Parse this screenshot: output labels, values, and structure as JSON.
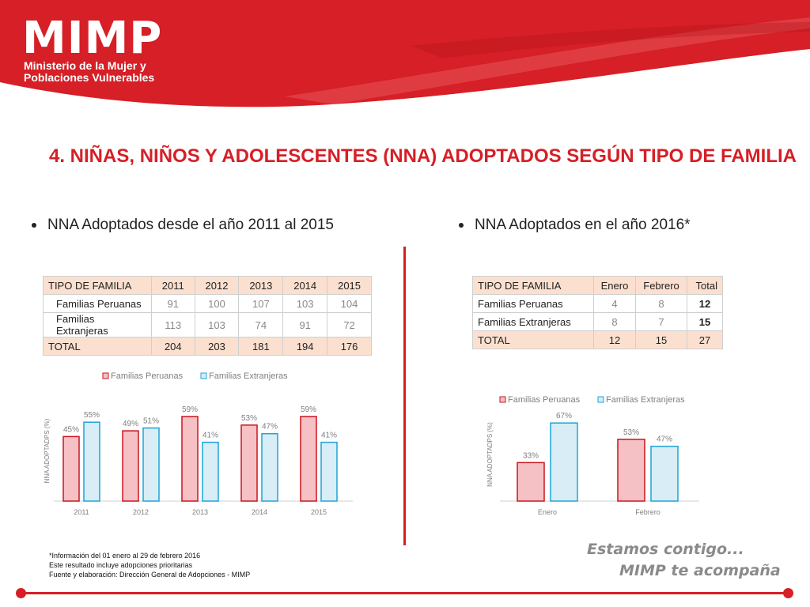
{
  "brand": {
    "name": "MIMP",
    "line1": "Ministerio de la Mujer y",
    "line2": "Poblaciones Vulnerables",
    "red": "#d61f26"
  },
  "title": "4. NIÑAS, NIÑOS Y ADOLESCENTES (NNA) ADOPTADOS SEGÚN TIPO DE FAMILIA",
  "left": {
    "bullet": "NNA Adoptados desde el año 2011 al 2015",
    "table": {
      "headers": [
        "TIPO DE FAMILIA",
        "2011",
        "2012",
        "2013",
        "2014",
        "2015"
      ],
      "rows": [
        [
          "Familias Peruanas",
          "91",
          "100",
          "107",
          "103",
          "104"
        ],
        [
          "Familias Extranjeras",
          "113",
          "103",
          "74",
          "91",
          "72"
        ],
        [
          "TOTAL",
          "204",
          "203",
          "181",
          "194",
          "176"
        ]
      ]
    }
  },
  "right": {
    "bullet": "NNA Adoptados en el año 2016*",
    "table": {
      "headers": [
        "TIPO DE FAMILIA",
        "Enero",
        "Febrero",
        "Total"
      ],
      "rows": [
        [
          "Familias Peruanas",
          "4",
          "8",
          "12"
        ],
        [
          "Familias Extranjeras",
          "8",
          "7",
          "15"
        ],
        [
          "TOTAL",
          "12",
          "15",
          "27"
        ]
      ]
    }
  },
  "chart_data": [
    {
      "type": "bar",
      "categories": [
        "2011",
        "2012",
        "2013",
        "2014",
        "2015"
      ],
      "series": [
        {
          "name": "Familias Peruanas",
          "values": [
            45,
            49,
            59,
            53,
            59
          ],
          "labels": [
            "45%",
            "49%",
            "59%",
            "53%",
            "59%"
          ]
        },
        {
          "name": "Familias Extranjeras",
          "values": [
            55,
            51,
            41,
            47,
            41
          ],
          "labels": [
            "55%",
            "51%",
            "41%",
            "47%",
            "41%"
          ]
        }
      ],
      "ylabel": "NNA ADOPTADPS (%)",
      "ylim": [
        0,
        70
      ],
      "legend": "top"
    },
    {
      "type": "bar",
      "categories": [
        "Enero",
        "Febrero"
      ],
      "series": [
        {
          "name": "Familias Peruanas",
          "values": [
            33,
            53
          ],
          "labels": [
            "33%",
            "53%"
          ]
        },
        {
          "name": "Familias Extranjeras",
          "values": [
            67,
            47
          ],
          "labels": [
            "67%",
            "47%"
          ]
        }
      ],
      "ylabel": "NNA ADOPTADPS (%)",
      "ylim": [
        0,
        80
      ],
      "legend": "top"
    }
  ],
  "chart_colors": {
    "peru_fill": "#f6c1c4",
    "peru_stroke": "#c8151f",
    "ext_fill": "#d8edf5",
    "ext_stroke": "#1fa3d8",
    "label": "#7f7f7f",
    "axis": "#d0d0d0"
  },
  "footnote": {
    "line1": "*Información del 01 enero al 29 de febrero 2016",
    "line2": "Este resultado incluye adopciones prioritarias",
    "line3": "Fuente y elaboración: Dirección General de Adopciones - MIMP"
  },
  "slogan": {
    "line1": "Estamos contigo...",
    "line2": "MIMP te acompaña"
  }
}
